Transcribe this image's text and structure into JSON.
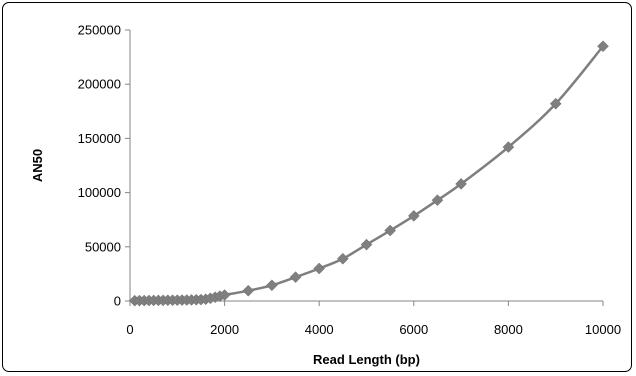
{
  "chart_data": {
    "type": "scatter",
    "title": "",
    "xlabel": "Read Length (bp)",
    "ylabel": "AN50",
    "xlim": [
      0,
      10000
    ],
    "ylim": [
      0,
      250000
    ],
    "xticks": [
      "0",
      "2000",
      "4000",
      "6000",
      "8000",
      "10000"
    ],
    "yticks": [
      "0",
      "50000",
      "100000",
      "150000",
      "200000",
      "250000"
    ],
    "grid": false,
    "legend": "none",
    "marker": "diamond",
    "line": "smooth",
    "color": "#7f7f7f",
    "series": [
      {
        "x": [
          100,
          200,
          300,
          400,
          500,
          600,
          700,
          800,
          900,
          1000,
          1100,
          1200,
          1300,
          1400,
          1500,
          1600,
          1700,
          1800,
          1900,
          2000,
          2500,
          3000,
          3500,
          4000,
          4500,
          5000,
          5500,
          6000,
          6500,
          7000,
          8000,
          9000,
          10000
        ],
        "y": [
          300,
          350,
          400,
          450,
          500,
          550,
          600,
          650,
          700,
          750,
          800,
          900,
          1000,
          1150,
          1300,
          1600,
          2500,
          3500,
          4500,
          5500,
          9500,
          14500,
          22000,
          30000,
          39000,
          52000,
          65000,
          78500,
          93000,
          108000,
          142000,
          182000,
          235000
        ]
      }
    ]
  }
}
